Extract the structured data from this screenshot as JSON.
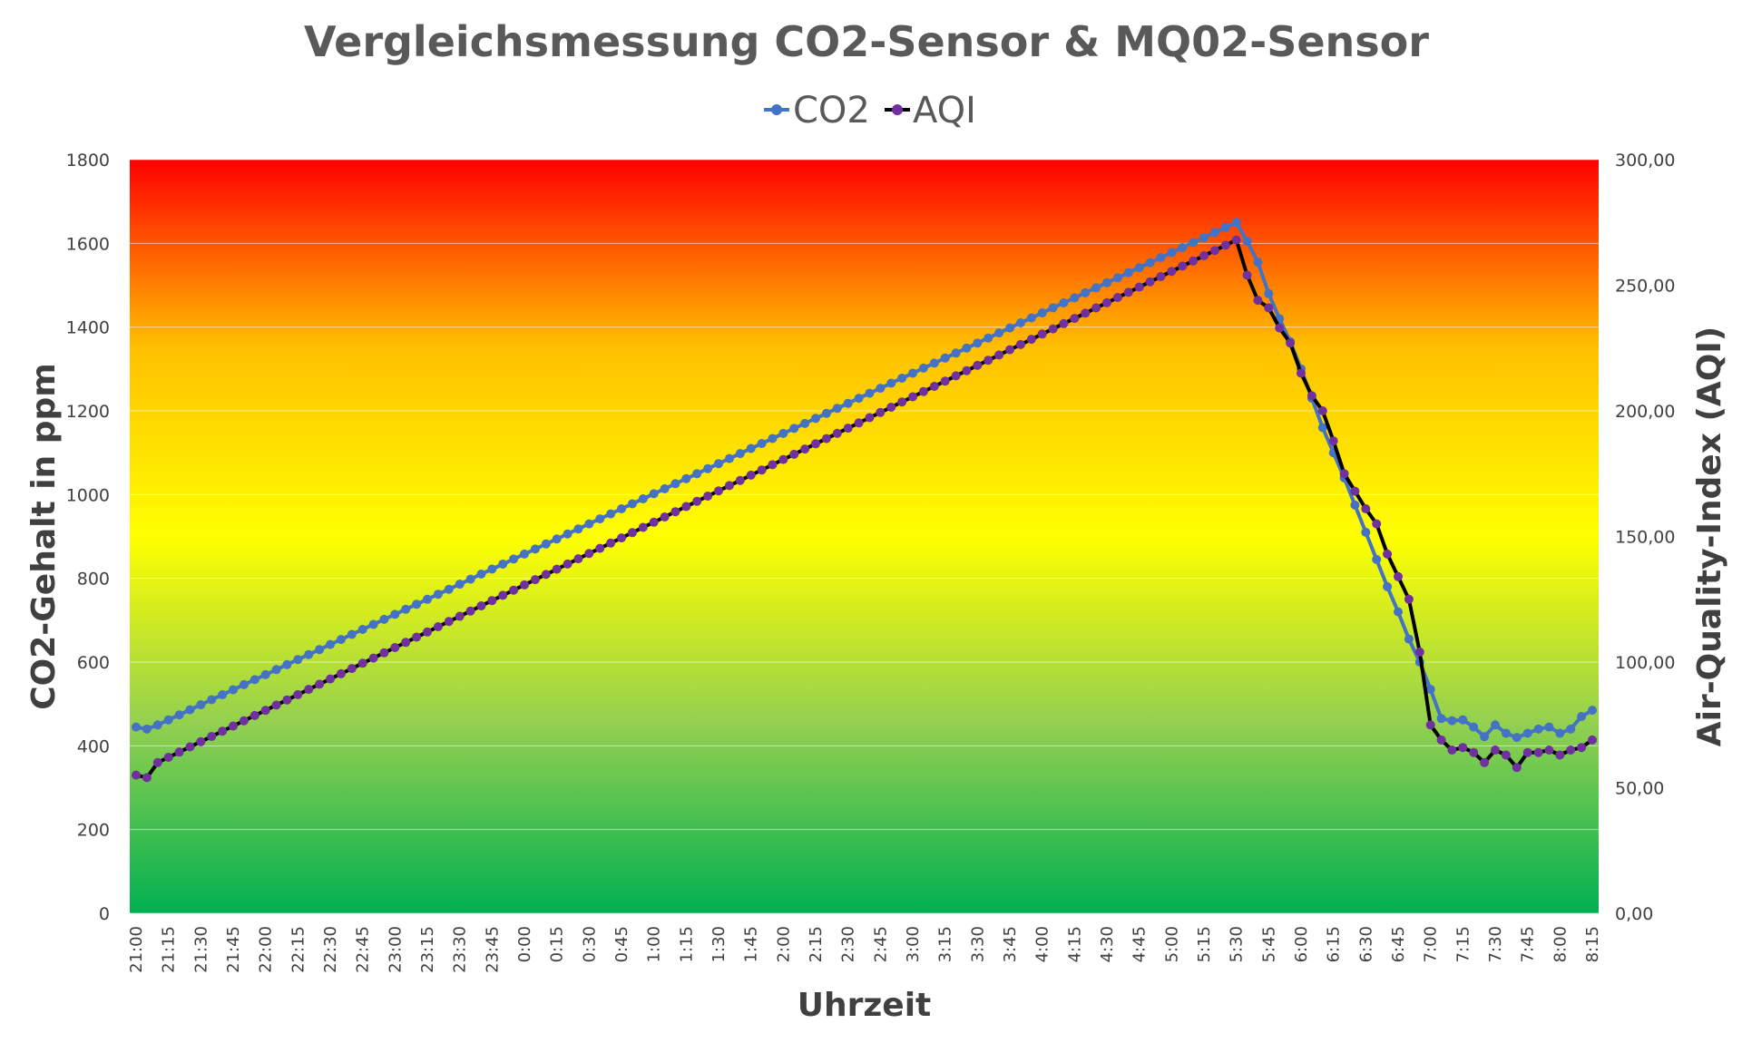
{
  "chart_data": {
    "type": "line",
    "title": "Vergleichsmessung CO2-Sensor & MQ02-Sensor",
    "xlabel": "Uhrzeit",
    "ylabel": "CO2-Gehalt in ppm",
    "y2label": "Air-Quality-Index (AQI)",
    "ylim": [
      0,
      1800
    ],
    "y2lim": [
      0,
      300
    ],
    "yticks": [
      "0",
      "200",
      "400",
      "600",
      "800",
      "1000",
      "1200",
      "1400",
      "1600",
      "1800"
    ],
    "y2ticks": [
      "0,00",
      "50,00",
      "100,00",
      "150,00",
      "200,00",
      "250,00",
      "300,00"
    ],
    "legend_position": "top",
    "background_gradient": [
      "#ff0000",
      "#ffc000",
      "#ffff00",
      "#92d050",
      "#00b050"
    ],
    "x_labels": [
      "21:00",
      "21:15",
      "21:30",
      "21:45",
      "22:00",
      "22:15",
      "22:30",
      "22:45",
      "23:00",
      "23:15",
      "23:30",
      "23:45",
      "0:00",
      "0:15",
      "0:30",
      "0:45",
      "1:00",
      "1:15",
      "1:30",
      "1:45",
      "2:00",
      "2:15",
      "2:30",
      "2:45",
      "3:00",
      "3:15",
      "3:30",
      "3:45",
      "4:00",
      "4:15",
      "4:30",
      "4:45",
      "5:00",
      "5:15",
      "5:30",
      "5:45",
      "6:00",
      "6:15",
      "6:30",
      "6:45",
      "7:00",
      "7:15",
      "7:30",
      "7:45",
      "8:00",
      "8:15"
    ],
    "points_per_label": 3,
    "series": [
      {
        "name": "CO2",
        "axis": "left",
        "color": "#4472c4",
        "key_points": [
          [
            0,
            445
          ],
          [
            1,
            440
          ],
          [
            2,
            450
          ],
          [
            102,
            1650
          ],
          [
            103,
            1605
          ],
          [
            104,
            1555
          ],
          [
            105,
            1480
          ],
          [
            106,
            1420
          ],
          [
            107,
            1365
          ],
          [
            108,
            1300
          ],
          [
            109,
            1230
          ],
          [
            110,
            1160
          ],
          [
            111,
            1100
          ],
          [
            112,
            1040
          ],
          [
            113,
            975
          ],
          [
            114,
            910
          ],
          [
            115,
            845
          ],
          [
            116,
            780
          ],
          [
            117,
            720
          ],
          [
            118,
            655
          ],
          [
            119,
            600
          ],
          [
            120,
            535
          ],
          [
            121,
            465
          ],
          [
            122,
            460
          ],
          [
            123,
            462
          ],
          [
            124,
            445
          ],
          [
            125,
            422
          ],
          [
            126,
            450
          ],
          [
            127,
            430
          ],
          [
            128,
            420
          ],
          [
            129,
            430
          ],
          [
            130,
            440
          ],
          [
            131,
            445
          ],
          [
            132,
            430
          ],
          [
            133,
            440
          ],
          [
            134,
            470
          ],
          [
            135,
            485
          ]
        ]
      },
      {
        "name": "AQI",
        "axis": "right",
        "color": "#000000",
        "marker_color": "#7030a0",
        "key_points": [
          [
            0,
            55
          ],
          [
            1,
            54
          ],
          [
            2,
            60
          ],
          [
            102,
            268
          ],
          [
            103,
            254
          ],
          [
            104,
            244
          ],
          [
            105,
            241
          ],
          [
            106,
            233
          ],
          [
            107,
            227
          ],
          [
            108,
            215
          ],
          [
            109,
            206
          ],
          [
            110,
            200
          ],
          [
            111,
            188
          ],
          [
            112,
            175
          ],
          [
            113,
            168
          ],
          [
            114,
            161
          ],
          [
            115,
            155
          ],
          [
            116,
            143
          ],
          [
            117,
            134
          ],
          [
            118,
            125
          ],
          [
            119,
            104
          ],
          [
            120,
            75
          ],
          [
            121,
            69
          ],
          [
            122,
            65
          ],
          [
            123,
            66
          ],
          [
            124,
            64
          ],
          [
            125,
            60
          ],
          [
            126,
            65
          ],
          [
            127,
            63
          ],
          [
            128,
            58
          ],
          [
            129,
            64
          ],
          [
            130,
            64
          ],
          [
            131,
            65
          ],
          [
            132,
            63
          ],
          [
            133,
            65
          ],
          [
            134,
            66
          ],
          [
            135,
            69
          ]
        ]
      }
    ]
  }
}
